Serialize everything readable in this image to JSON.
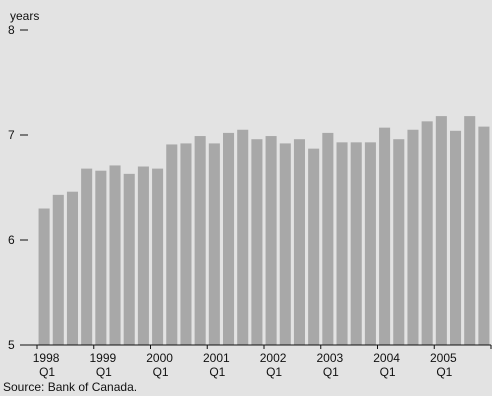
{
  "chart_data": {
    "type": "bar",
    "ylabel": "years",
    "ylim": [
      5,
      8
    ],
    "yticks": [
      5,
      6,
      7,
      8
    ],
    "ytick_labels": [
      "5",
      "6",
      "7",
      "8"
    ],
    "x_tick_groups": [
      {
        "year": "1998",
        "quarter": "Q1"
      },
      {
        "year": "1999",
        "quarter": "Q1"
      },
      {
        "year": "2000",
        "quarter": "Q1"
      },
      {
        "year": "2001",
        "quarter": "Q1"
      },
      {
        "year": "2002",
        "quarter": "Q1"
      },
      {
        "year": "2003",
        "quarter": "Q1"
      },
      {
        "year": "2004",
        "quarter": "Q1"
      },
      {
        "year": "2005",
        "quarter": "Q1"
      }
    ],
    "periods_per_group": 4,
    "values": [
      6.3,
      6.43,
      6.46,
      6.68,
      6.66,
      6.71,
      6.63,
      6.7,
      6.68,
      6.91,
      6.92,
      6.99,
      6.92,
      7.02,
      7.05,
      6.96,
      6.99,
      6.92,
      6.96,
      6.87,
      7.02,
      6.93,
      6.93,
      6.93,
      7.07,
      6.96,
      7.05,
      7.13,
      7.18,
      7.04,
      7.18,
      7.08
    ],
    "bar_color": "#a8a8a8",
    "grid": false
  },
  "source": "Source: Bank of Canada."
}
